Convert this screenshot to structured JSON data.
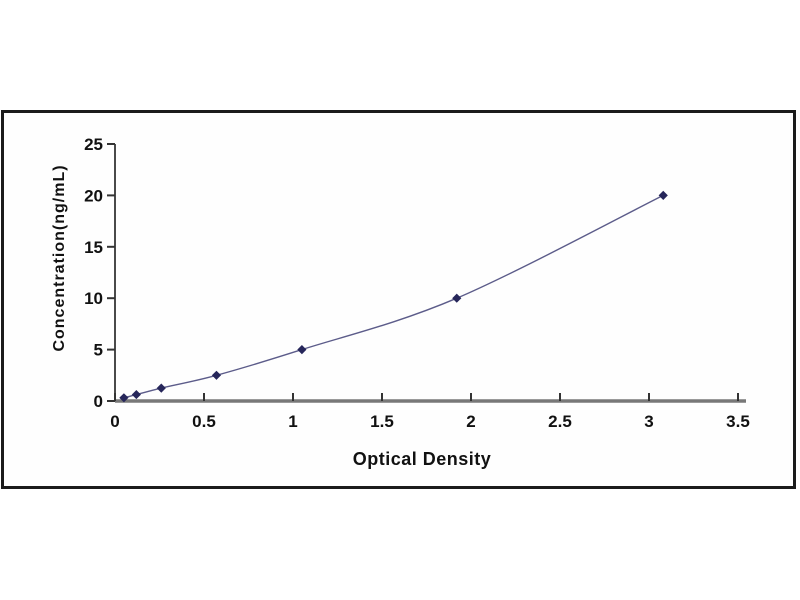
{
  "page": {
    "background_color": "#ffffff"
  },
  "image_frame": {
    "border_color": "#1b1b1b",
    "fill_color": "#fefefe"
  },
  "chart_data": {
    "type": "line",
    "title": "",
    "xlabel": "Optical Density",
    "ylabel": "Concentration(ng/mL)",
    "x": [
      0.05,
      0.12,
      0.26,
      0.57,
      1.05,
      1.92,
      3.08
    ],
    "y": [
      0.312,
      0.625,
      1.25,
      2.5,
      5,
      10,
      20
    ],
    "xlim": [
      0,
      3.5
    ],
    "ylim": [
      0,
      25
    ],
    "x_tick_values": [
      0,
      0.5,
      1,
      1.5,
      2,
      2.5,
      3,
      3.5
    ],
    "x_tick_labels": [
      "0",
      "0.5",
      "1",
      "1.5",
      "2",
      "2.5",
      "3",
      "3.5"
    ],
    "y_tick_values": [
      0,
      5,
      10,
      15,
      20,
      25
    ],
    "y_tick_labels": [
      "0",
      "5",
      "10",
      "15",
      "20",
      "25"
    ],
    "grid": false,
    "legend": false,
    "smooth_line": true,
    "marker_shape": "diamond",
    "line_color": "#5c5c8a",
    "marker_color": "#26265a",
    "x_axis_color": "#787878",
    "y_axis_color": "#4a4a4a",
    "tick_color": "#333333"
  }
}
